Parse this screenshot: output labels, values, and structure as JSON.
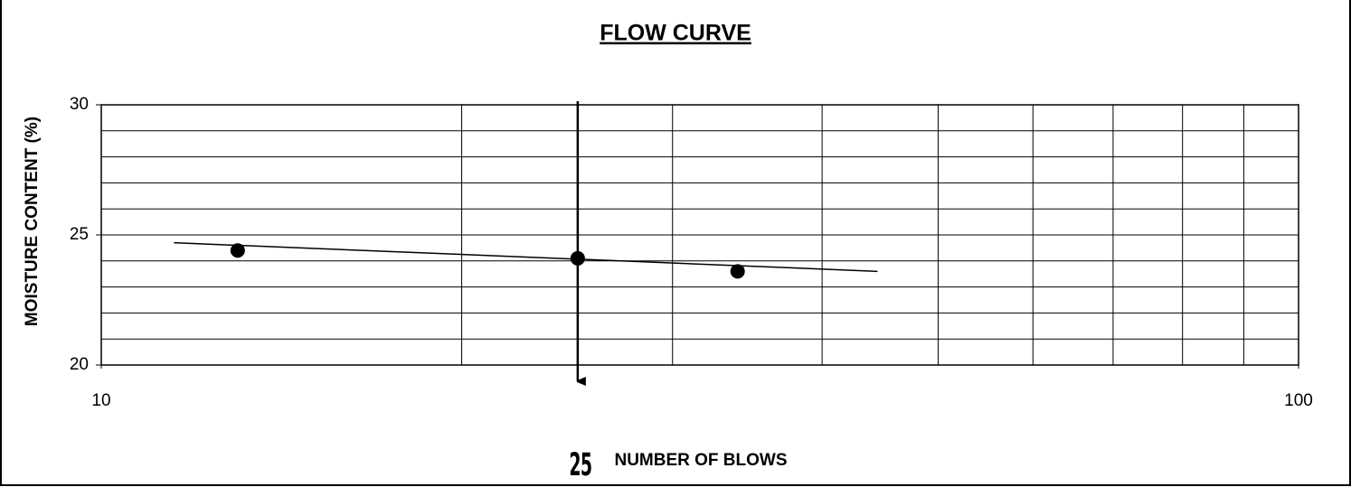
{
  "chart_data": {
    "type": "scatter",
    "title": "FLOW CURVE",
    "xlabel": "NUMBER OF BLOWS",
    "ylabel": "MOISTURE CONTENT  (%)",
    "x": [
      13,
      25,
      34
    ],
    "values": [
      24.4,
      24.1,
      23.6
    ],
    "color": "#000000",
    "trendline": {
      "x": [
        11.5,
        44.5
      ],
      "values": [
        24.7,
        23.6
      ],
      "color": "#000000"
    },
    "reference_x": 25,
    "xscale": "log",
    "xlim": [
      10,
      100
    ],
    "xticks": [
      10,
      100
    ],
    "x_grid": [
      20,
      30,
      40,
      50,
      60,
      70,
      80,
      90
    ],
    "ylim": [
      20,
      30
    ],
    "yticks": [
      20,
      25,
      30
    ],
    "y_grid": [
      21,
      22,
      23,
      24,
      25,
      26,
      27,
      28,
      29
    ],
    "grid": true
  }
}
